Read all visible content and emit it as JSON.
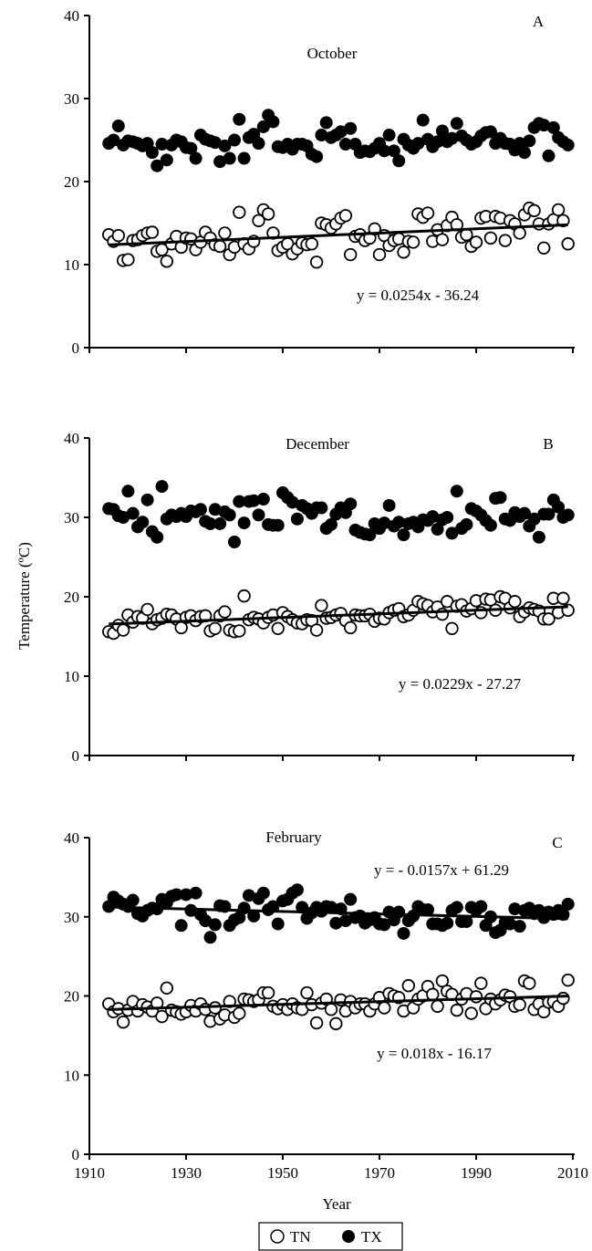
{
  "chart_data": [
    {
      "type": "scatter",
      "panel_label": "A",
      "title": "October",
      "equations": [
        "y = 0.0254x - 36.24"
      ],
      "xlim": [
        1910,
        2010
      ],
      "ylim": [
        0,
        40
      ],
      "yticks": [
        "0",
        "10",
        "20",
        "30",
        "40"
      ],
      "x": [
        1914,
        1915,
        1916,
        1917,
        1918,
        1919,
        1920,
        1921,
        1922,
        1923,
        1924,
        1925,
        1926,
        1927,
        1928,
        1929,
        1930,
        1931,
        1932,
        1933,
        1934,
        1935,
        1936,
        1937,
        1938,
        1939,
        1940,
        1941,
        1942,
        1943,
        1944,
        1945,
        1946,
        1947,
        1948,
        1949,
        1950,
        1951,
        1952,
        1953,
        1954,
        1955,
        1956,
        1957,
        1958,
        1959,
        1960,
        1961,
        1962,
        1963,
        1964,
        1965,
        1966,
        1967,
        1968,
        1969,
        1970,
        1971,
        1972,
        1973,
        1974,
        1975,
        1976,
        1977,
        1978,
        1979,
        1980,
        1981,
        1982,
        1983,
        1984,
        1985,
        1986,
        1987,
        1988,
        1989,
        1990,
        1991,
        1992,
        1993,
        1994,
        1995,
        1996,
        1997,
        1998,
        1999,
        2000,
        2001,
        2002,
        2003,
        2004,
        2005,
        2006,
        2007,
        2008,
        2009
      ],
      "series": [
        {
          "name": "TN",
          "marker": "open-circle",
          "values": [
            13.6,
            12.8,
            13.5,
            10.5,
            10.6,
            12.9,
            13.0,
            13.5,
            13.8,
            13.9,
            11.6,
            11.8,
            10.4,
            12.5,
            13.4,
            12.1,
            13.2,
            13.1,
            11.8,
            12.7,
            13.9,
            13.2,
            12.4,
            12.2,
            13.8,
            11.2,
            12.1,
            16.3,
            12.5,
            11.9,
            12.8,
            15.3,
            16.6,
            16.1,
            13.8,
            11.7,
            12.1,
            12.5,
            11.3,
            11.9,
            12.6,
            12.4,
            12.5,
            10.3,
            15.0,
            14.8,
            14.4,
            14.9,
            15.6,
            15.9,
            11.2,
            13.4,
            13.6,
            12.9,
            13.2,
            14.3,
            11.2,
            13.5,
            12.3,
            12.9,
            13.1,
            11.5,
            12.8,
            12.7,
            16.1,
            15.7,
            16.2,
            12.8,
            14.2,
            13.0,
            14.7,
            15.7,
            14.8,
            13.3,
            13.6,
            12.2,
            12.7,
            15.6,
            15.8,
            13.2,
            15.8,
            15.6,
            12.9,
            15.3,
            14.9,
            13.8,
            16.0,
            16.8,
            16.5,
            14.9,
            12.0,
            14.9,
            15.4,
            16.6,
            15.3,
            12.5
          ]
        },
        {
          "name": "TX",
          "marker": "filled-circle",
          "values": [
            24.6,
            25.0,
            26.7,
            24.4,
            24.9,
            24.8,
            24.6,
            24.3,
            24.6,
            23.5,
            21.9,
            24.5,
            22.6,
            24.4,
            25.0,
            24.8,
            24.1,
            24.0,
            22.8,
            25.6,
            25.1,
            24.9,
            24.7,
            22.4,
            24.3,
            22.8,
            25.0,
            27.5,
            22.8,
            25.3,
            25.7,
            24.6,
            26.6,
            28.0,
            27.2,
            24.2,
            24.1,
            24.5,
            23.9,
            24.5,
            24.5,
            24.3,
            23.3,
            23.0,
            25.6,
            27.1,
            25.3,
            25.6,
            26.0,
            24.5,
            26.4,
            24.5,
            23.5,
            23.7,
            23.6,
            24.0,
            24.6,
            23.7,
            25.6,
            23.7,
            22.5,
            25.1,
            24.4,
            24.0,
            24.6,
            27.4,
            25.1,
            24.2,
            24.8,
            26.1,
            24.8,
            25.2,
            27.0,
            25.5,
            25.0,
            24.5,
            24.8,
            25.5,
            25.9,
            26.0,
            24.6,
            25.2,
            24.6,
            24.5,
            23.8,
            24.6,
            23.5,
            24.9,
            26.5,
            27.0,
            26.8,
            23.1,
            26.5,
            25.3,
            24.8,
            24.4
          ]
        }
      ],
      "trendlines": [
        {
          "series": "TN",
          "slope": 0.0254,
          "intercept": -36.24
        }
      ]
    },
    {
      "type": "scatter",
      "panel_label": "B",
      "title": "December",
      "equations": [
        "y = 0.0229x - 27.27"
      ],
      "xlim": [
        1910,
        2010
      ],
      "ylim": [
        0,
        40
      ],
      "yticks": [
        "0",
        "10",
        "20",
        "30",
        "40"
      ],
      "x": [
        1914,
        1915,
        1916,
        1917,
        1918,
        1919,
        1920,
        1921,
        1922,
        1923,
        1924,
        1925,
        1926,
        1927,
        1928,
        1929,
        1930,
        1931,
        1932,
        1933,
        1934,
        1935,
        1936,
        1937,
        1938,
        1939,
        1940,
        1941,
        1942,
        1943,
        1944,
        1945,
        1946,
        1947,
        1948,
        1949,
        1950,
        1951,
        1952,
        1953,
        1954,
        1955,
        1956,
        1957,
        1958,
        1959,
        1960,
        1961,
        1962,
        1963,
        1964,
        1965,
        1966,
        1967,
        1968,
        1969,
        1970,
        1971,
        1972,
        1973,
        1974,
        1975,
        1976,
        1977,
        1978,
        1979,
        1980,
        1981,
        1982,
        1983,
        1984,
        1985,
        1986,
        1987,
        1988,
        1989,
        1990,
        1991,
        1992,
        1993,
        1994,
        1995,
        1996,
        1997,
        1998,
        1999,
        2000,
        2001,
        2002,
        2003,
        2004,
        2005,
        2006,
        2007,
        2008,
        2009
      ],
      "series": [
        {
          "name": "TN",
          "marker": "open-circle",
          "values": [
            15.6,
            15.4,
            16.4,
            15.8,
            17.7,
            16.8,
            17.5,
            17.3,
            18.4,
            16.6,
            17.1,
            17.3,
            17.8,
            17.7,
            17.2,
            16.1,
            17.4,
            17.6,
            17.0,
            17.5,
            17.6,
            15.7,
            16.0,
            17.6,
            18.1,
            15.8,
            15.6,
            15.7,
            20.1,
            17.1,
            17.4,
            17.2,
            16.7,
            17.4,
            17.7,
            16.0,
            18.0,
            17.5,
            17.1,
            16.7,
            16.6,
            17.1,
            17.0,
            15.8,
            18.9,
            17.3,
            17.4,
            17.7,
            17.9,
            17.0,
            16.1,
            17.7,
            17.6,
            17.6,
            17.8,
            16.9,
            17.3,
            17.2,
            18.0,
            18.3,
            18.5,
            17.5,
            17.7,
            18.3,
            19.4,
            19.1,
            18.9,
            18.1,
            18.7,
            17.8,
            19.4,
            16.0,
            18.8,
            19.0,
            18.2,
            18.5,
            19.5,
            18.0,
            19.7,
            19.6,
            18.3,
            20.0,
            19.8,
            18.6,
            19.4,
            17.5,
            18.1,
            18.6,
            18.4,
            18.2,
            17.2,
            17.2,
            19.8,
            18.0,
            19.8,
            18.3
          ]
        },
        {
          "name": "TX",
          "marker": "filled-circle",
          "values": [
            31.1,
            31.0,
            30.2,
            30.0,
            33.3,
            30.5,
            28.8,
            29.4,
            32.2,
            28.2,
            27.5,
            33.9,
            29.8,
            30.3,
            30.1,
            30.5,
            30.1,
            30.8,
            30.7,
            31.0,
            29.5,
            29.2,
            31.0,
            29.2,
            30.7,
            30.3,
            26.9,
            32.0,
            29.3,
            32.0,
            32.1,
            30.3,
            32.3,
            29.1,
            29.0,
            29.0,
            33.1,
            32.5,
            31.9,
            29.8,
            31.5,
            31.1,
            30.5,
            31.2,
            31.2,
            28.6,
            29.1,
            30.4,
            31.2,
            30.6,
            31.7,
            28.4,
            28.1,
            27.9,
            27.8,
            29.2,
            28.6,
            29.3,
            31.5,
            28.9,
            29.4,
            27.8,
            29.2,
            29.4,
            28.8,
            29.7,
            29.6,
            30.1,
            28.5,
            29.7,
            30.0,
            28.0,
            33.3,
            28.6,
            29.1,
            31.1,
            30.8,
            30.3,
            29.6,
            29.0,
            32.4,
            32.5,
            29.8,
            29.6,
            30.6,
            30.1,
            30.5,
            28.9,
            29.8,
            27.5,
            30.4,
            30.4,
            32.2,
            31.3,
            30.0,
            30.3
          ]
        }
      ],
      "trendlines": [
        {
          "series": "TN",
          "slope": 0.0229,
          "intercept": -27.27
        }
      ]
    },
    {
      "type": "scatter",
      "panel_label": "C",
      "title": "February",
      "equations": [
        "y = - 0.0157x + 61.29",
        "y = 0.018x - 16.17"
      ],
      "xlim": [
        1910,
        2010
      ],
      "ylim": [
        0,
        40
      ],
      "xticks": [
        "1910",
        "1930",
        "1950",
        "1970",
        "1990",
        "2010"
      ],
      "yticks": [
        "0",
        "10",
        "20",
        "30",
        "40"
      ],
      "x": [
        1914,
        1915,
        1916,
        1917,
        1918,
        1919,
        1920,
        1921,
        1922,
        1923,
        1924,
        1925,
        1926,
        1927,
        1928,
        1929,
        1930,
        1931,
        1932,
        1933,
        1934,
        1935,
        1936,
        1937,
        1938,
        1939,
        1940,
        1941,
        1942,
        1943,
        1944,
        1945,
        1946,
        1947,
        1948,
        1949,
        1950,
        1951,
        1952,
        1953,
        1954,
        1955,
        1956,
        1957,
        1958,
        1959,
        1960,
        1961,
        1962,
        1963,
        1964,
        1965,
        1966,
        1967,
        1968,
        1969,
        1970,
        1971,
        1972,
        1973,
        1974,
        1975,
        1976,
        1977,
        1978,
        1979,
        1980,
        1981,
        1982,
        1983,
        1984,
        1985,
        1986,
        1987,
        1988,
        1989,
        1990,
        1991,
        1992,
        1993,
        1994,
        1995,
        1996,
        1997,
        1998,
        1999,
        2000,
        2001,
        2002,
        2003,
        2004,
        2005,
        2006,
        2007,
        2008,
        2009
      ],
      "series": [
        {
          "name": "TN",
          "marker": "open-circle",
          "values": [
            19.0,
            18.0,
            18.4,
            16.7,
            18.2,
            19.3,
            18.1,
            18.9,
            18.6,
            18.1,
            19.1,
            17.4,
            21.0,
            18.2,
            18.0,
            17.7,
            18.0,
            18.8,
            18.1,
            19.0,
            18.3,
            16.8,
            18.5,
            17.1,
            17.6,
            19.3,
            17.3,
            17.8,
            19.6,
            19.5,
            19.3,
            19.5,
            20.4,
            20.4,
            18.7,
            18.4,
            18.9,
            18.3,
            19.0,
            18.5,
            18.3,
            20.4,
            18.9,
            16.6,
            19.1,
            19.6,
            18.3,
            16.5,
            19.5,
            18.1,
            19.3,
            18.5,
            19.0,
            19.0,
            18.1,
            19.0,
            19.8,
            18.5,
            20.3,
            20.0,
            19.8,
            18.1,
            21.3,
            18.5,
            19.6,
            20.0,
            21.2,
            20.2,
            18.7,
            21.9,
            20.6,
            20.2,
            18.2,
            19.6,
            20.3,
            17.8,
            19.9,
            21.6,
            18.4,
            19.6,
            19.0,
            19.5,
            20.1,
            19.9,
            18.7,
            18.9,
            21.9,
            21.6,
            18.3,
            19.0,
            18.0,
            19.2,
            19.3,
            18.7,
            19.7,
            22.0
          ]
        },
        {
          "name": "TX",
          "marker": "filled-circle",
          "values": [
            31.3,
            32.5,
            32.0,
            31.6,
            31.3,
            32.1,
            30.4,
            30.1,
            30.8,
            31.1,
            31.0,
            32.2,
            31.8,
            32.6,
            32.8,
            28.9,
            32.8,
            30.8,
            33.0,
            30.3,
            29.5,
            27.4,
            29.0,
            31.4,
            31.3,
            28.9,
            29.6,
            29.9,
            31.1,
            32.7,
            30.1,
            32.3,
            33.0,
            30.9,
            31.3,
            29.1,
            32.0,
            32.2,
            33.0,
            33.4,
            31.2,
            29.8,
            30.5,
            31.2,
            30.7,
            31.3,
            31.2,
            29.2,
            31.0,
            29.5,
            32.2,
            29.9,
            30.1,
            29.2,
            29.6,
            29.9,
            29.1,
            29.0,
            30.6,
            29.6,
            30.6,
            27.9,
            29.5,
            30.1,
            31.3,
            30.9,
            30.9,
            29.1,
            29.1,
            28.9,
            29.2,
            30.8,
            31.2,
            29.4,
            29.4,
            31.2,
            30.8,
            31.3,
            28.9,
            30.0,
            28.0,
            28.3,
            29.3,
            29.1,
            31.0,
            28.8,
            30.8,
            31.1,
            30.4,
            30.8,
            29.9,
            30.6,
            30.3,
            30.8,
            30.3,
            31.6
          ]
        }
      ],
      "trendlines": [
        {
          "series": "TX",
          "slope": -0.0157,
          "intercept": 61.29
        },
        {
          "series": "TN",
          "slope": 0.018,
          "intercept": -16.17
        }
      ]
    }
  ],
  "axes": {
    "ylabel": "Temperature (ºC)",
    "xlabel": "Year"
  },
  "legend": {
    "position": "bottom-center",
    "items": [
      {
        "label": "TN",
        "marker": "open-circle"
      },
      {
        "label": "TX",
        "marker": "filled-circle"
      }
    ]
  }
}
